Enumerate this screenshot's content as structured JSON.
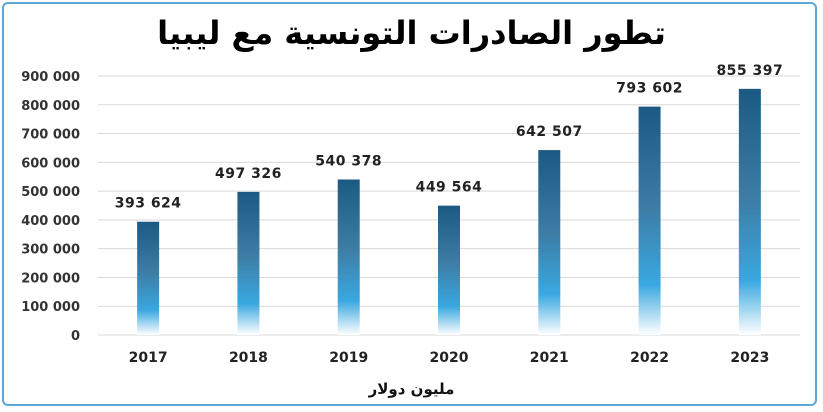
{
  "chart_data": {
    "type": "bar",
    "title": "تطور الصادرات التونسية مع ليبيا",
    "xlabel": "مليون دولار",
    "ylabel": "",
    "categories": [
      "2017",
      "2018",
      "2019",
      "2020",
      "2021",
      "2022",
      "2023"
    ],
    "values": [
      393624,
      497326,
      540378,
      449564,
      642507,
      793602,
      855397
    ],
    "value_labels": [
      "393 624",
      "497 326",
      "540 378",
      "449 564",
      "642 507",
      "793 602",
      "855 397"
    ],
    "ylim": [
      0,
      900000
    ],
    "yticks": [
      0,
      100000,
      200000,
      300000,
      400000,
      500000,
      600000,
      700000,
      800000,
      900000
    ],
    "ytick_labels": [
      "0",
      "100 000",
      "200 000",
      "300 000",
      "400 000",
      "500 000",
      "600 000",
      "700 000",
      "800 000",
      "900 000"
    ],
    "grid": true,
    "bar_colors": {
      "top": "#1b5a82",
      "middle": "#3aa8e0",
      "bottom": "#ffffff"
    }
  }
}
